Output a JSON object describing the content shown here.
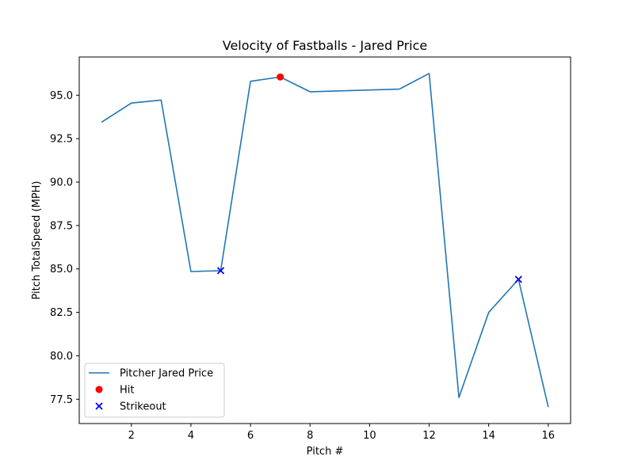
{
  "chart_data": {
    "type": "line",
    "title": "Velocity of Fastballs - Jared Price",
    "xlabel": "Pitch #",
    "ylabel": "Pitch TotalSpeed (MPH)",
    "xlim": [
      0.25,
      16.75
    ],
    "ylim": [
      76.1,
      97.2
    ],
    "xticks": [
      2,
      4,
      6,
      8,
      10,
      12,
      14,
      16
    ],
    "yticks": [
      77.5,
      80.0,
      82.5,
      85.0,
      87.5,
      90.0,
      92.5,
      95.0
    ],
    "grid": false,
    "legend_position": "lower-left",
    "series": [
      {
        "name": "Pitcher Jared Price",
        "type": "line",
        "color": "#1f77b4",
        "x": [
          1,
          2,
          3,
          4,
          5,
          6,
          7,
          8,
          11,
          12,
          13,
          14,
          15,
          16
        ],
        "y": [
          93.45,
          94.55,
          94.72,
          84.85,
          84.9,
          95.8,
          96.05,
          95.2,
          95.35,
          96.25,
          77.6,
          82.5,
          84.4,
          77.05
        ]
      },
      {
        "name": "Hit",
        "type": "scatter",
        "marker": "circle",
        "color": "#ff0000",
        "x": [
          7
        ],
        "y": [
          96.05
        ]
      },
      {
        "name": "Strikeout",
        "type": "scatter",
        "marker": "x",
        "color": "#0000ff",
        "x": [
          5,
          15
        ],
        "y": [
          84.9,
          84.4
        ]
      }
    ]
  }
}
